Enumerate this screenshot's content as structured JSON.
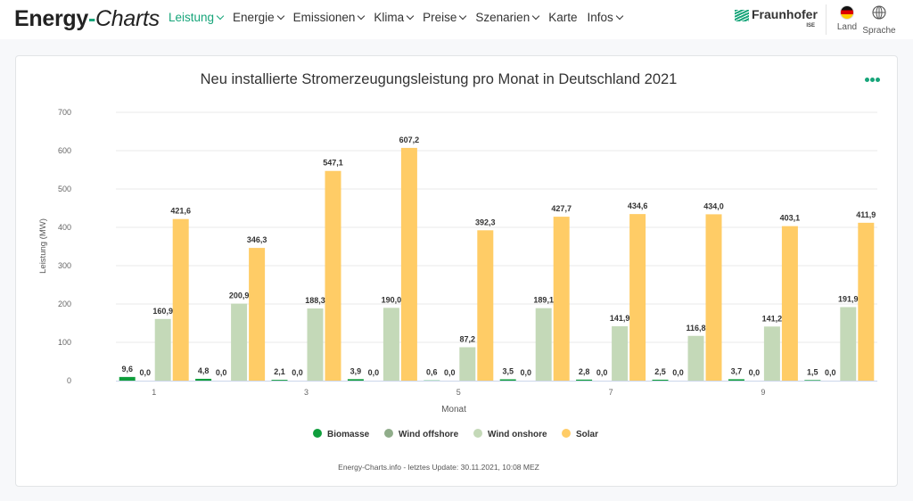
{
  "header": {
    "logo_bold": "Energy",
    "logo_dash": "-",
    "logo_italic": "Charts",
    "nav": [
      {
        "label": "Leistung",
        "dropdown": true,
        "active": true
      },
      {
        "label": "Energie",
        "dropdown": true,
        "active": false
      },
      {
        "label": "Emissionen",
        "dropdown": true,
        "active": false
      },
      {
        "label": "Klima",
        "dropdown": true,
        "active": false
      },
      {
        "label": "Preise",
        "dropdown": true,
        "active": false
      },
      {
        "label": "Szenarien",
        "dropdown": true,
        "active": false
      },
      {
        "label": "Karte",
        "dropdown": false,
        "active": false
      },
      {
        "label": "Infos",
        "dropdown": true,
        "active": false
      }
    ],
    "fraunhofer_name": "Fraunhofer",
    "fraunhofer_sub": "ISE",
    "land_label": "Land",
    "sprache_label": "Sprache",
    "accent_color": "#17a57a"
  },
  "chart_data": {
    "type": "bar",
    "title": "Neu installierte Stromerzeugungsleistung pro Monat in Deutschland 2021",
    "xlabel": "Monat",
    "ylabel": "Leistung (MW)",
    "ylim": [
      0,
      700
    ],
    "yticks": [
      0,
      100,
      200,
      300,
      400,
      500,
      600,
      700
    ],
    "categories": [
      "1",
      "2",
      "3",
      "4",
      "5",
      "6",
      "7",
      "8",
      "9",
      "10"
    ],
    "xtick_labels_shown": [
      "1",
      "3",
      "5",
      "7",
      "9"
    ],
    "grid": true,
    "legend_position": "bottom-center",
    "series": [
      {
        "name": "Biomasse",
        "color": "#0f9e3c",
        "values": [
          9.6,
          4.8,
          2.1,
          3.9,
          0.6,
          3.5,
          2.8,
          2.5,
          3.7,
          1.5
        ],
        "labels": [
          "9,6",
          "4,8",
          "2,1",
          "3,9",
          "0,6",
          "3,5",
          "2,8",
          "2,5",
          "3,7",
          "1,5"
        ]
      },
      {
        "name": "Wind offshore",
        "color": "#90ad8a",
        "values": [
          0,
          0,
          0,
          0,
          0,
          0,
          0,
          0,
          0,
          0
        ],
        "labels": [
          "0,0",
          "0,0",
          "0,0",
          "0,0",
          "0,0",
          "0,0",
          "0,0",
          "0,0",
          "0,0",
          "0,0"
        ]
      },
      {
        "name": "Wind onshore",
        "color": "#c4d9b8",
        "values": [
          160.9,
          200.9,
          188.3,
          190.0,
          87.2,
          189.1,
          141.9,
          116.8,
          141.2,
          191.9
        ],
        "labels": [
          "160,9",
          "200,9",
          "188,3",
          "190,0",
          "87,2",
          "189,1",
          "141,9",
          "116,8",
          "141,2",
          "191,9"
        ]
      },
      {
        "name": "Solar",
        "color": "#ffcc66",
        "values": [
          421.6,
          346.3,
          547.1,
          607.2,
          392.3,
          427.7,
          434.6,
          434.0,
          403.1,
          411.9
        ],
        "labels": [
          "421,6",
          "346,3",
          "547,1",
          "607,2",
          "392,3",
          "427,7",
          "434,6",
          "434,0",
          "403,1",
          "411,9"
        ]
      }
    ],
    "footer": "Energy-Charts.info - letztes Update: 30.11.2021, 10:08 MEZ"
  }
}
